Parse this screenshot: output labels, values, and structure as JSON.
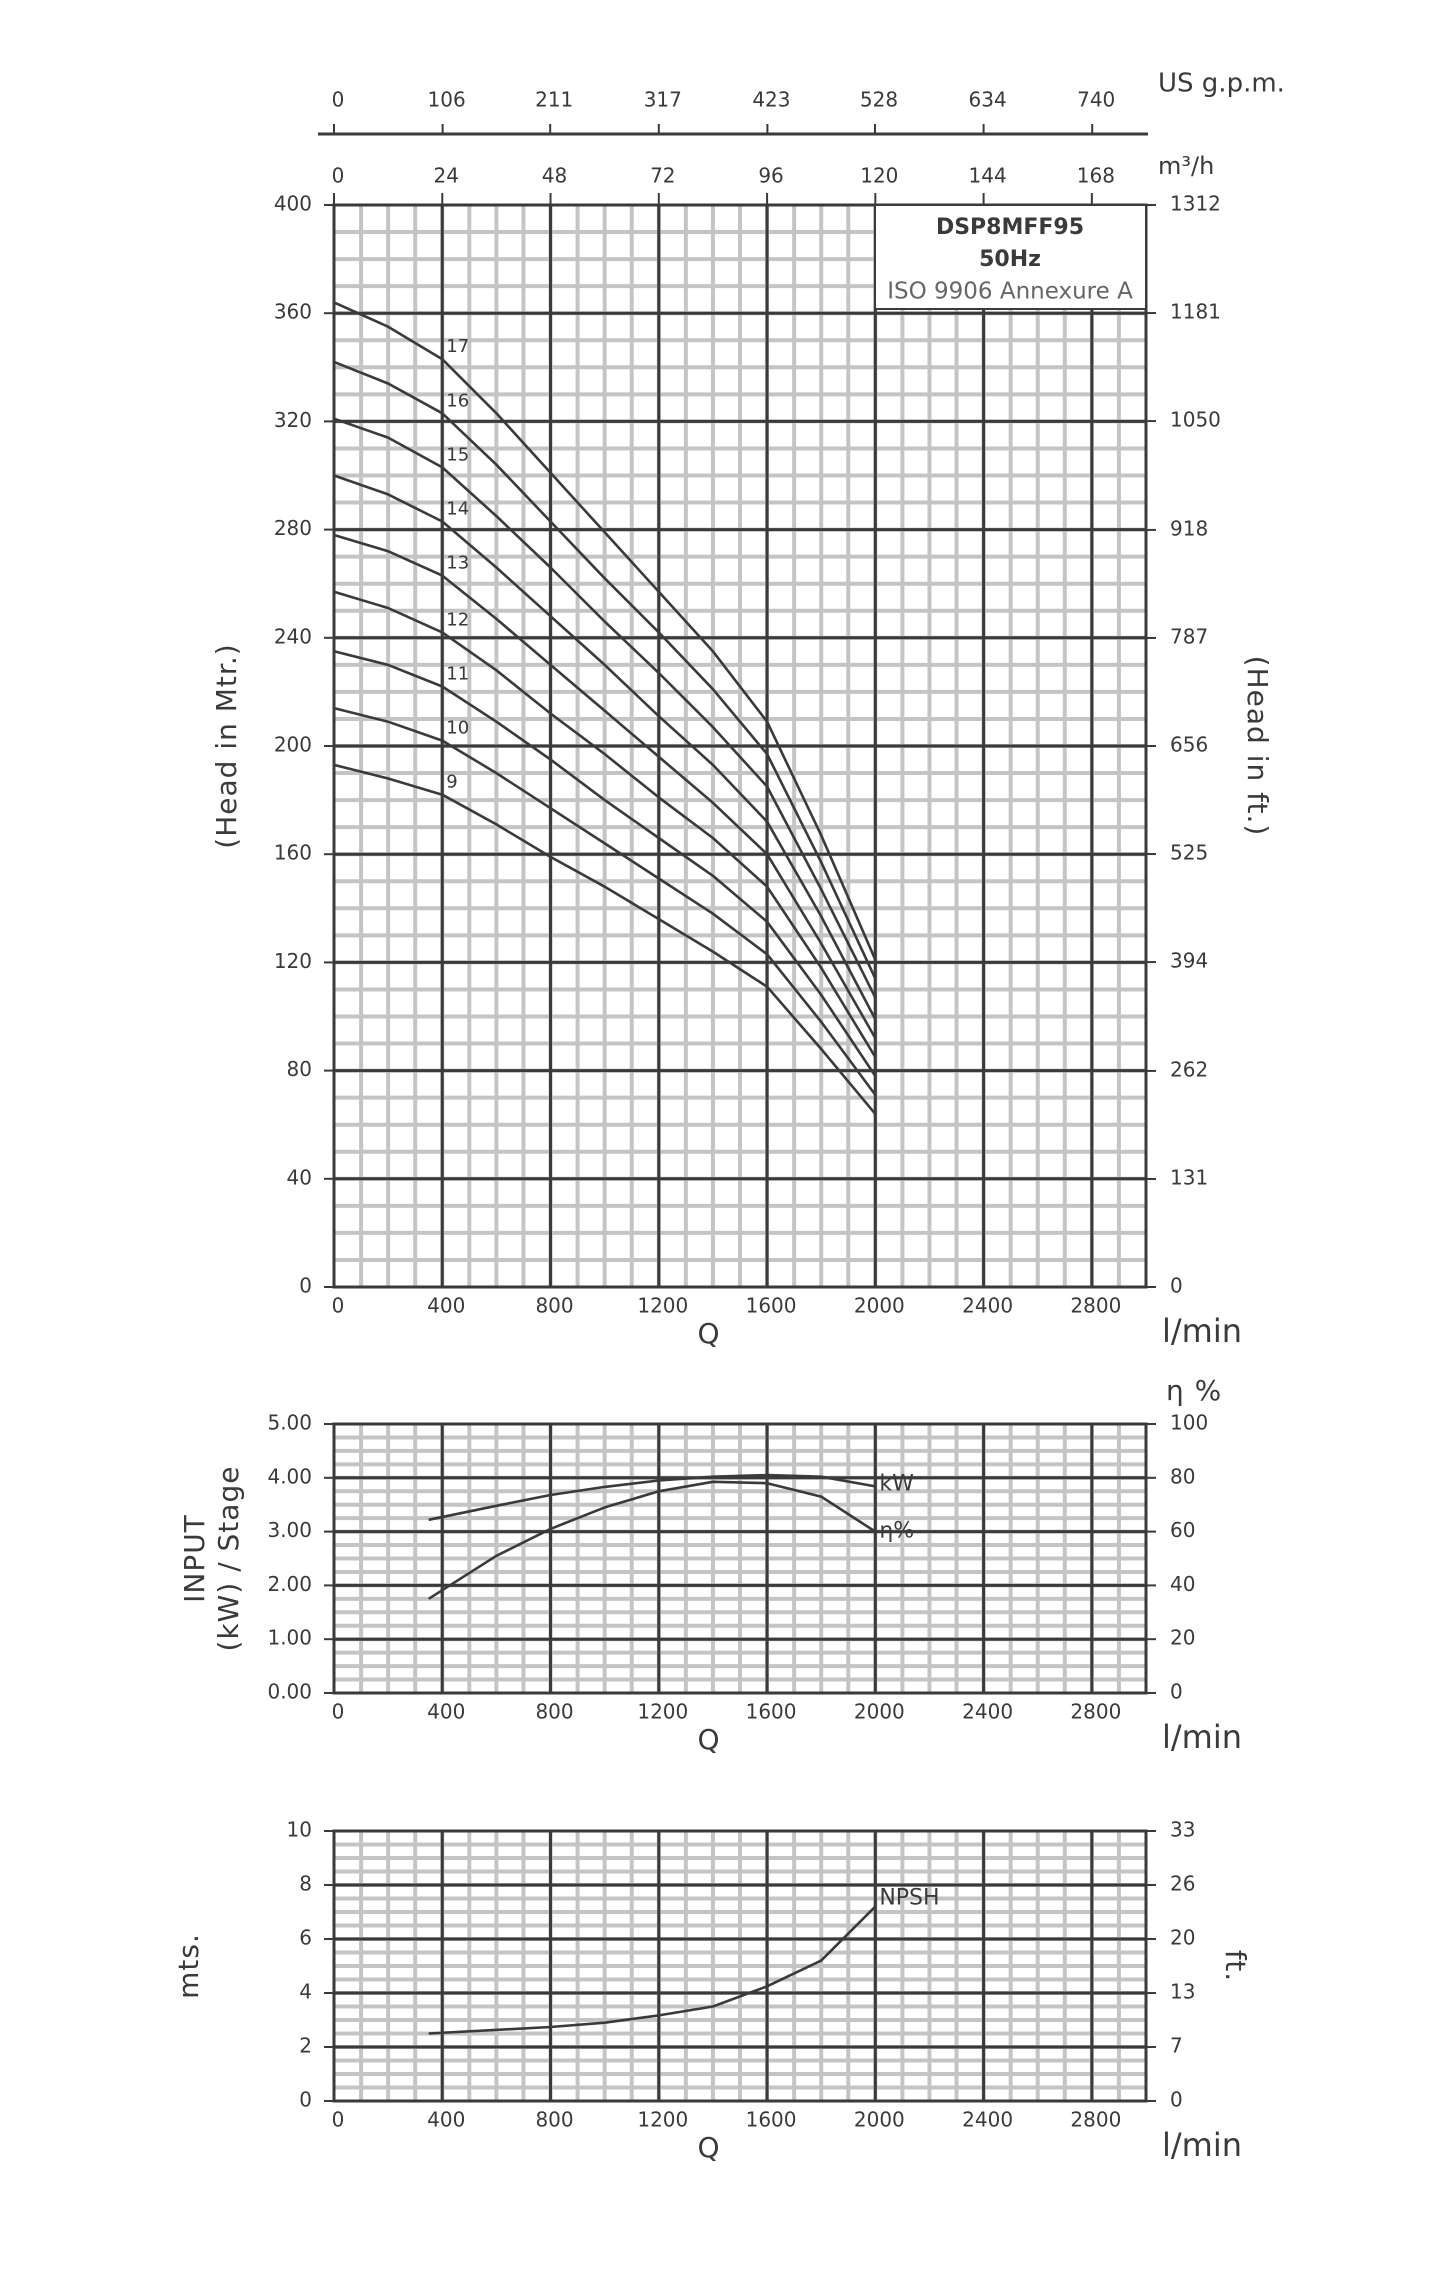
{
  "chart_data": [
    {
      "type": "line",
      "annotation": [
        "DSP8MFF95",
        "50Hz",
        "ISO 9906 Annexure A"
      ],
      "ylabel": "(Head in Mtr.)",
      "y2label": "(Head in ft.)",
      "xlabel": "Q",
      "xunit": "l/min",
      "x2unit": "m³/h",
      "x3unit": "US g.p.m.",
      "x": [
        0,
        200,
        400,
        600,
        800,
        1000,
        1200,
        1400,
        1600,
        1800,
        2000
      ],
      "xlim": [
        0,
        3000
      ],
      "xticks": [
        0,
        400,
        800,
        1200,
        1600,
        2000,
        2400,
        2800
      ],
      "x2lim": [
        0,
        180
      ],
      "x2ticks": [
        0,
        24,
        48,
        72,
        96,
        120,
        144,
        168
      ],
      "x3lim": [
        0,
        792.5
      ],
      "x3ticks": [
        0,
        106,
        211,
        317,
        423,
        528,
        634,
        740
      ],
      "ylim": [
        0,
        400
      ],
      "yticks": [
        0,
        40,
        80,
        120,
        160,
        200,
        240,
        280,
        320,
        360,
        400
      ],
      "y2lim": [
        0,
        1312
      ],
      "y2ticks": [
        0,
        131,
        262,
        394,
        525,
        656,
        787,
        918,
        1050,
        1181,
        1312
      ],
      "grid": true,
      "series": [
        {
          "name": "17",
          "color": "#3a3a3a",
          "values": [
            364,
            355,
            343,
            323,
            301,
            279,
            257,
            235,
            209,
            167,
            121
          ]
        },
        {
          "name": "16",
          "color": "#3a3a3a",
          "values": [
            342,
            334,
            323,
            304,
            283,
            262,
            242,
            221,
            197,
            157,
            114
          ]
        },
        {
          "name": "15",
          "color": "#3a3a3a",
          "values": [
            321,
            314,
            303,
            285,
            266,
            246,
            227,
            207,
            185,
            147,
            107
          ]
        },
        {
          "name": "14",
          "color": "#3a3a3a",
          "values": [
            300,
            293,
            283,
            266,
            248,
            230,
            211,
            193,
            172,
            137,
            99
          ]
        },
        {
          "name": "13",
          "color": "#3a3a3a",
          "values": [
            278,
            272,
            263,
            247,
            230,
            213,
            196,
            179,
            160,
            127,
            92
          ]
        },
        {
          "name": "12",
          "color": "#3a3a3a",
          "values": [
            257,
            251,
            242,
            228,
            212,
            197,
            181,
            166,
            148,
            118,
            85
          ]
        },
        {
          "name": "11",
          "color": "#3a3a3a",
          "values": [
            235,
            230,
            222,
            209,
            195,
            180,
            166,
            152,
            135,
            108,
            78
          ]
        },
        {
          "name": "10",
          "color": "#3a3a3a",
          "values": [
            214,
            209,
            202,
            190,
            177,
            164,
            151,
            138,
            123,
            98,
            71
          ]
        },
        {
          "name": "9",
          "color": "#3a3a3a",
          "values": [
            193,
            188,
            182,
            171,
            159,
            148,
            136,
            124,
            111,
            88,
            64
          ]
        }
      ]
    },
    {
      "type": "line",
      "ylabel_lines": [
        "INPUT",
        "(kW) / Stage"
      ],
      "y2label": "η %",
      "xlabel": "Q",
      "xunit": "l/min",
      "x": [
        350,
        600,
        800,
        1000,
        1200,
        1400,
        1600,
        1800,
        2000
      ],
      "xlim": [
        0,
        3000
      ],
      "xticks": [
        0,
        400,
        800,
        1200,
        1600,
        2000,
        2400,
        2800
      ],
      "ylim": [
        0,
        5
      ],
      "yticks": [
        {
          "value": 0,
          "label": "0.00"
        },
        {
          "value": 1,
          "label": "1.00"
        },
        {
          "value": 2,
          "label": "2.00"
        },
        {
          "value": 3,
          "label": "3.00"
        },
        {
          "value": 4,
          "label": "4.00"
        },
        {
          "value": 5,
          "label": "5.00"
        }
      ],
      "y2lim": [
        0,
        100
      ],
      "y2ticks": [
        0,
        20,
        40,
        60,
        80,
        100
      ],
      "grid": true,
      "series": [
        {
          "name": "kW",
          "color": "#3a3a3a",
          "values": [
            3.22,
            3.48,
            3.68,
            3.83,
            3.95,
            4.02,
            4.05,
            4.02,
            3.84
          ]
        },
        {
          "name": "η%",
          "color": "#3a3a3a",
          "axis": "y2",
          "values": [
            35,
            51,
            61,
            69,
            75,
            78.5,
            78,
            73,
            60
          ]
        }
      ]
    },
    {
      "type": "line",
      "ylabel": "mts.",
      "y2label": "ft.",
      "xlabel": "Q",
      "xunit": "l/min",
      "x": [
        350,
        800,
        1000,
        1200,
        1400,
        1600,
        1800,
        2000
      ],
      "xlim": [
        0,
        3000
      ],
      "xticks": [
        0,
        400,
        800,
        1200,
        1600,
        2000,
        2400,
        2800
      ],
      "ylim": [
        0,
        10
      ],
      "yticks": [
        0,
        2,
        4,
        6,
        8,
        10
      ],
      "y2lim": [
        0,
        32.81
      ],
      "y2ticks": [
        0,
        {
          "value": 6.56,
          "label": "7"
        },
        {
          "value": 13.12,
          "label": "13"
        },
        {
          "value": 19.69,
          "label": "20"
        },
        {
          "value": 26.25,
          "label": "26"
        },
        {
          "value": 32.81,
          "label": "33"
        }
      ],
      "grid": true,
      "series": [
        {
          "name": "NPSH",
          "color": "#3a3a3a",
          "values": [
            2.5,
            2.74,
            2.9,
            3.17,
            3.5,
            4.25,
            5.2,
            7.2
          ]
        }
      ]
    }
  ]
}
